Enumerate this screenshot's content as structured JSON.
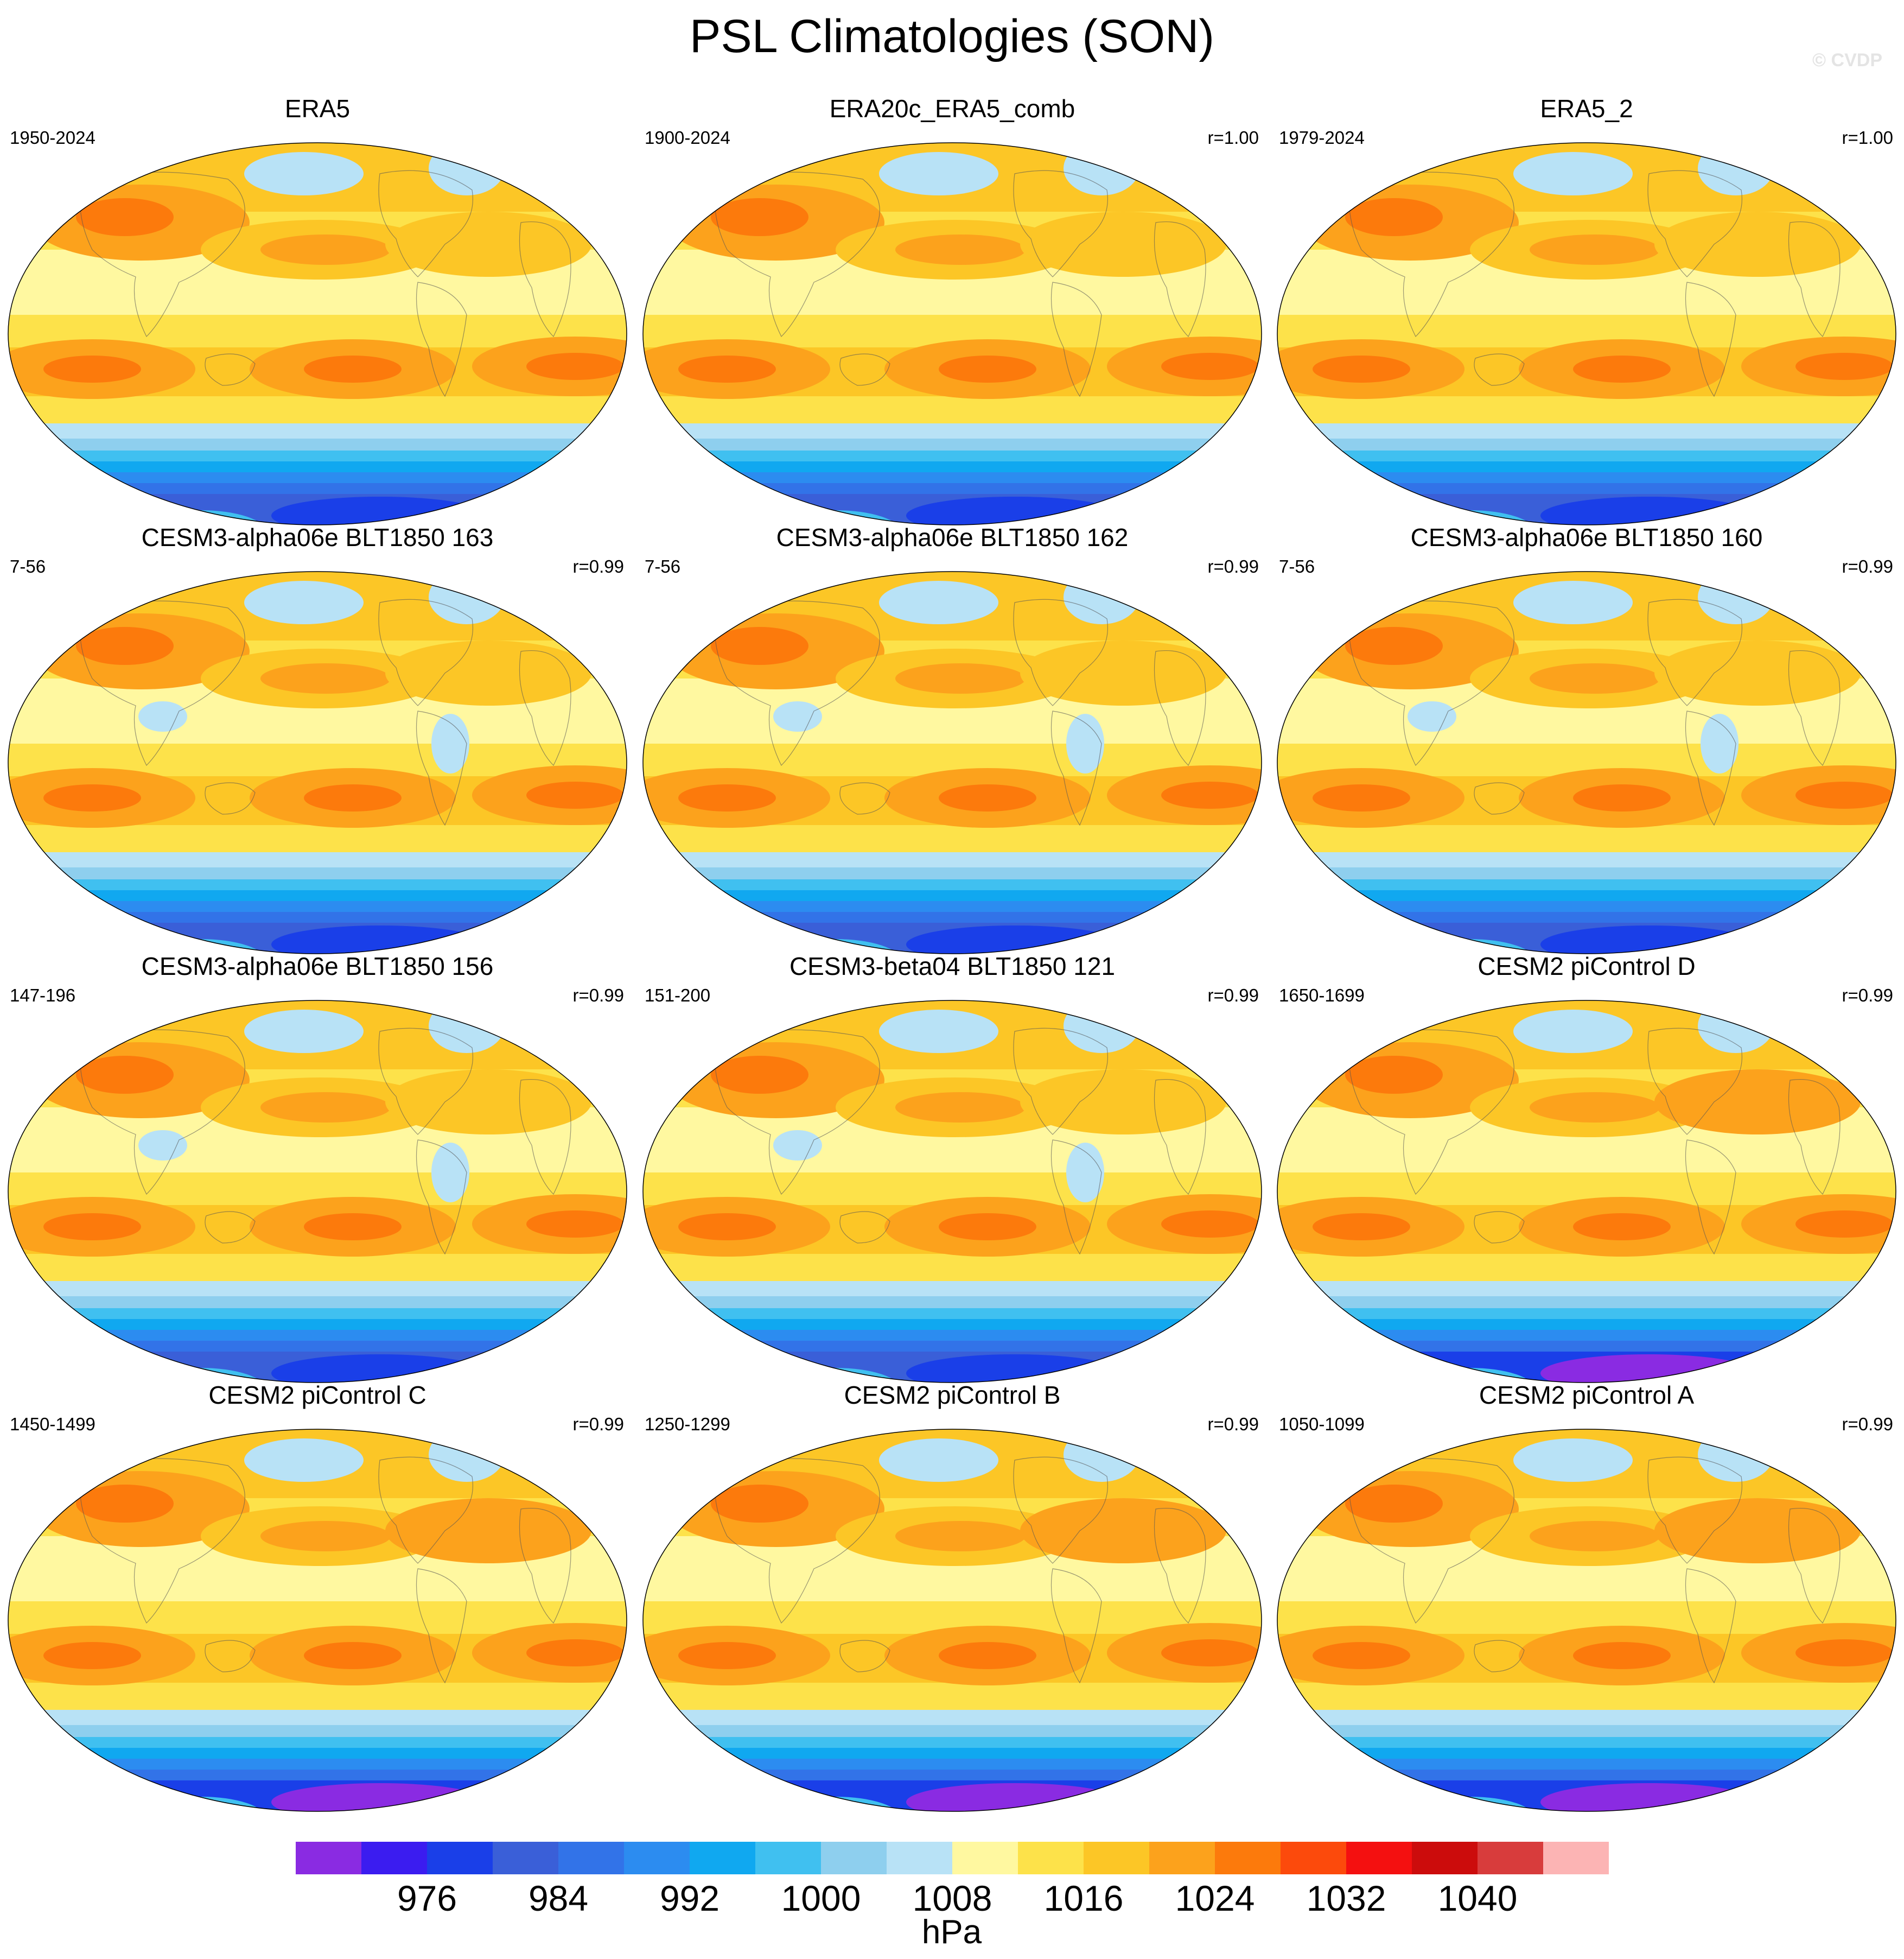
{
  "title": "PSL Climatologies (SON)",
  "watermark": "© CVDP",
  "colorbar": {
    "units": "hPa",
    "tick_labels": [
      "976",
      "984",
      "992",
      "1000",
      "1008",
      "1016",
      "1024",
      "1032",
      "1040"
    ],
    "colors": [
      "#8a2be2",
      "#3b1cf0",
      "#1a3fe8",
      "#3a5fd8",
      "#3273e8",
      "#2c8cf0",
      "#10a8f0",
      "#40c0f0",
      "#8ecfee",
      "#b8e2f6",
      "#fff8a0",
      "#fde24a",
      "#fcc626",
      "#fca21c",
      "#fc7a0c",
      "#fc4a0c",
      "#f41010",
      "#cc0c0c",
      "#d83c3c",
      "#fcb4b4"
    ]
  },
  "panels": [
    {
      "title": "ERA5",
      "years": "1950-2024",
      "corr": ""
    },
    {
      "title": "ERA20c_ERA5_comb",
      "years": "1900-2024",
      "corr": "r=1.00"
    },
    {
      "title": "ERA5_2",
      "years": "1979-2024",
      "corr": "r=1.00"
    },
    {
      "title": "CESM3-alpha06e BLT1850 163",
      "years": "7-56",
      "corr": "r=0.99"
    },
    {
      "title": "CESM3-alpha06e BLT1850 162",
      "years": "7-56",
      "corr": "r=0.99"
    },
    {
      "title": "CESM3-alpha06e BLT1850 160",
      "years": "7-56",
      "corr": "r=0.99"
    },
    {
      "title": "CESM3-alpha06e BLT1850 156",
      "years": "147-196",
      "corr": "r=0.99"
    },
    {
      "title": "CESM3-beta04 BLT1850 121",
      "years": "151-200",
      "corr": "r=0.99"
    },
    {
      "title": "CESM2 piControl D",
      "years": "1650-1699",
      "corr": "r=0.99"
    },
    {
      "title": "CESM2 piControl C",
      "years": "1450-1499",
      "corr": "r=0.99"
    },
    {
      "title": "CESM2 piControl B",
      "years": "1250-1299",
      "corr": "r=0.99"
    },
    {
      "title": "CESM2 piControl A",
      "years": "1050-1099",
      "corr": "r=0.99"
    }
  ]
}
